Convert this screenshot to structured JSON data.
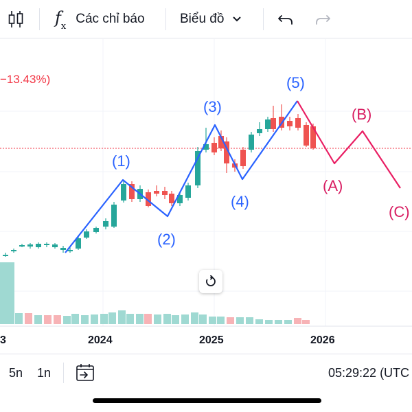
{
  "toolbar": {
    "indicators_label": "Các chỉ báo",
    "chart_type_label": "Biểu đồ",
    "fx_main": "f",
    "fx_sub": "x"
  },
  "chart": {
    "percent_label": "−13.43%)",
    "years": [
      "3",
      "2024",
      "2025",
      "2026"
    ],
    "wave_labels_blue": [
      "(1)",
      "(2)",
      "(3)",
      "(4)",
      "(5)"
    ],
    "wave_labels_pink": [
      "(A)",
      "(B)",
      "(C)"
    ],
    "colors": {
      "up": "#26a69a",
      "down": "#ef5350",
      "impulse": "#2962ff",
      "correction": "#e91e63",
      "wave_text_blue": "#2962ff",
      "wave_text_pink": "#d81b60",
      "price_line": "#f23645",
      "volume_up": "#9fd9d2",
      "volume_down": "#f7b3b6"
    }
  },
  "bottom": {
    "range_5y": "5n",
    "range_1y": "1n",
    "time": "05:29:22 (UTC"
  },
  "icons": [
    "candles-icon",
    "fx-icon",
    "chevron-down-icon",
    "undo-icon",
    "redo-icon",
    "reset-icon",
    "goto-date-icon"
  ]
}
